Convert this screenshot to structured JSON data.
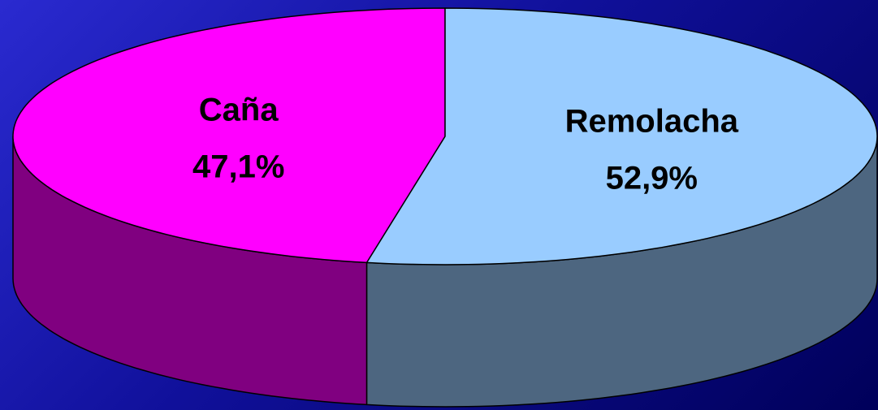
{
  "chart_data": {
    "type": "pie3d",
    "categories": [
      "Caña",
      "Remolacha"
    ],
    "values": [
      47.1,
      52.9
    ],
    "value_labels": [
      "47,1%",
      "52,9%"
    ],
    "colors": [
      "#ff00ff",
      "#99ccff"
    ]
  }
}
